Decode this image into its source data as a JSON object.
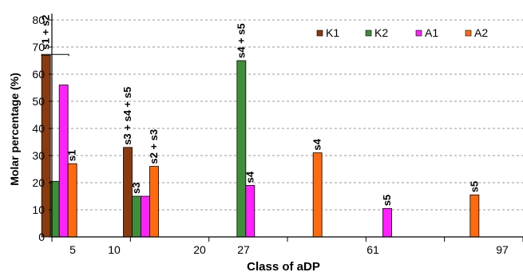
{
  "chart_data": {
    "type": "bar",
    "title": "",
    "xlabel": "Class of aDP",
    "ylabel": "Molar percentage (%)",
    "ylim": [
      0,
      80
    ],
    "yticks": [
      0,
      10,
      20,
      30,
      40,
      50,
      60,
      70,
      80
    ],
    "grid": true,
    "legend_position": "top-right",
    "categories": [
      "5",
      "10",
      "20",
      "27",
      "61",
      "97"
    ],
    "series": [
      {
        "name": "K1",
        "color": "#8B3A0F",
        "values": [
          67,
          33,
          0,
          0,
          0,
          0
        ]
      },
      {
        "name": "K2",
        "color": "#3F8F3A",
        "values": [
          20.5,
          15,
          65,
          0,
          0,
          0
        ]
      },
      {
        "name": "A1",
        "color": "#FF22FF",
        "values": [
          56,
          15,
          19,
          0,
          10.5,
          0
        ]
      },
      {
        "name": "A2",
        "color": "#FF6A10",
        "values": [
          27,
          26,
          0,
          31,
          0,
          15.5
        ]
      }
    ],
    "annotations": [
      {
        "text": "s1 + s2",
        "category": "5",
        "series": "K1",
        "bracket": true
      },
      {
        "text": "s1",
        "category": "5",
        "series": "A2"
      },
      {
        "text": "s3 + s4 + s5",
        "category": "10",
        "series": "K1"
      },
      {
        "text": "s3",
        "category": "10",
        "series": "K2"
      },
      {
        "text": "s2 + s3",
        "category": "10",
        "series": "A2"
      },
      {
        "text": "s4 + s5",
        "category": "20",
        "series": "K2"
      },
      {
        "text": "s4",
        "category": "20",
        "series": "A1"
      },
      {
        "text": "s4",
        "category": "27",
        "series": "A2"
      },
      {
        "text": "s5",
        "category": "61",
        "series": "A1"
      },
      {
        "text": "s5",
        "category": "97",
        "series": "A2"
      }
    ]
  }
}
